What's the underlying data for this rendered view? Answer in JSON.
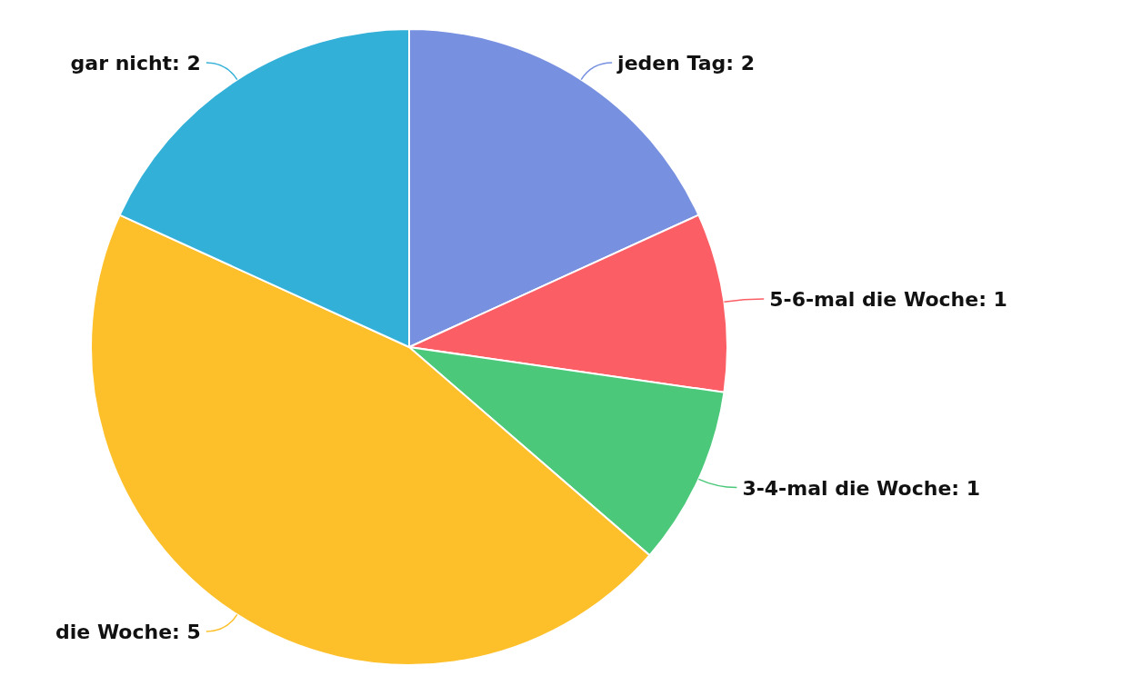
{
  "chart_data": {
    "type": "pie",
    "categories": [
      "jeden Tag",
      "5-6-mal die Woche",
      "3-4-mal die Woche",
      "die Woche",
      "gar nicht"
    ],
    "values": [
      2,
      1,
      1,
      5,
      2
    ],
    "value_labels": [
      ": 2",
      ": 1",
      ": 1",
      ": 5",
      ": 2"
    ],
    "colors": [
      "#7790e0",
      "#fb5e64",
      "#4bc87a",
      "#fdc02a",
      "#33b0d8"
    ],
    "legend": false
  }
}
